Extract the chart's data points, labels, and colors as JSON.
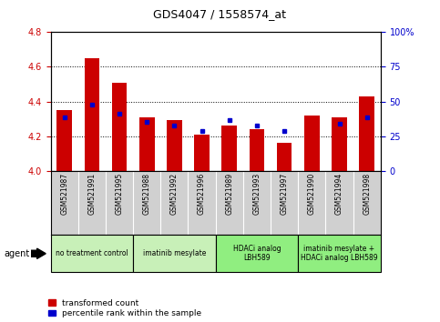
{
  "title": "GDS4047 / 1558574_at",
  "samples": [
    "GSM521987",
    "GSM521991",
    "GSM521995",
    "GSM521988",
    "GSM521992",
    "GSM521996",
    "GSM521989",
    "GSM521993",
    "GSM521997",
    "GSM521990",
    "GSM521994",
    "GSM521998"
  ],
  "red_values": [
    4.35,
    4.65,
    4.51,
    4.31,
    4.29,
    4.21,
    4.26,
    4.24,
    4.16,
    4.32,
    4.31,
    4.43
  ],
  "blue_values_raw": [
    4.31,
    4.38,
    4.33,
    4.28,
    4.26,
    4.23,
    4.29,
    4.26,
    4.23,
    null,
    4.27,
    4.31
  ],
  "groups": [
    {
      "label": "no treatment control",
      "start": 0,
      "end": 3,
      "color": "#c8f0b8"
    },
    {
      "label": "imatinib mesylate",
      "start": 3,
      "end": 6,
      "color": "#c8f0b8"
    },
    {
      "label": "HDACi analog\nLBH589",
      "start": 6,
      "end": 9,
      "color": "#90ee80"
    },
    {
      "label": "imatinib mesylate +\nHDACi analog LBH589",
      "start": 9,
      "end": 12,
      "color": "#90ee80"
    }
  ],
  "ylim": [
    4.0,
    4.8
  ],
  "yticks": [
    4.0,
    4.2,
    4.4,
    4.6,
    4.8
  ],
  "y2lim": [
    0,
    100
  ],
  "y2ticks": [
    0,
    25,
    50,
    75,
    100
  ],
  "red_color": "#cc0000",
  "blue_color": "#0000cc",
  "bar_width": 0.55,
  "bg_plot": "#ffffff",
  "bg_xaxis": "#d0d0d0",
  "legend_red": "transformed count",
  "legend_blue": "percentile rank within the sample",
  "agent_label": "agent"
}
